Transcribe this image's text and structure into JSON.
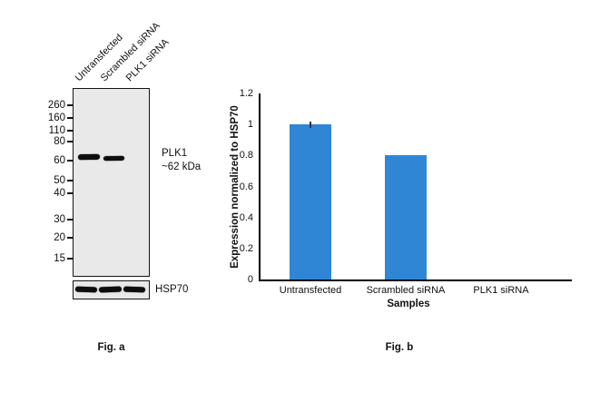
{
  "fig_a": {
    "caption": "Fig. a",
    "lane_labels": [
      "Untransfected",
      "Scrambled siRNA",
      "PLK1 siRNA"
    ],
    "mw_markers": [
      "260",
      "160",
      "110",
      "80",
      "60",
      "50",
      "40",
      "30",
      "20",
      "15"
    ],
    "target_label": "PLK1",
    "target_mw": "~62 kDa",
    "loading_control_label": "HSP70"
  },
  "fig_b": {
    "caption": "Fig. b"
  },
  "chart_data": {
    "type": "bar",
    "categories": [
      "Untransfected",
      "Scrambled siRNA",
      "PLK1 siRNA"
    ],
    "values": [
      1.0,
      0.8,
      0
    ],
    "error_bars": [
      0.02,
      0,
      0
    ],
    "title": "",
    "xlabel": "Samples",
    "ylabel": "Expression normalized to HSP70",
    "ylim": [
      0,
      1.2
    ],
    "yticks": [
      0,
      0.2,
      0.4,
      0.6,
      0.8,
      1,
      1.2
    ],
    "bar_color": "#2f86d5",
    "grid": false,
    "legend_position": "none"
  }
}
